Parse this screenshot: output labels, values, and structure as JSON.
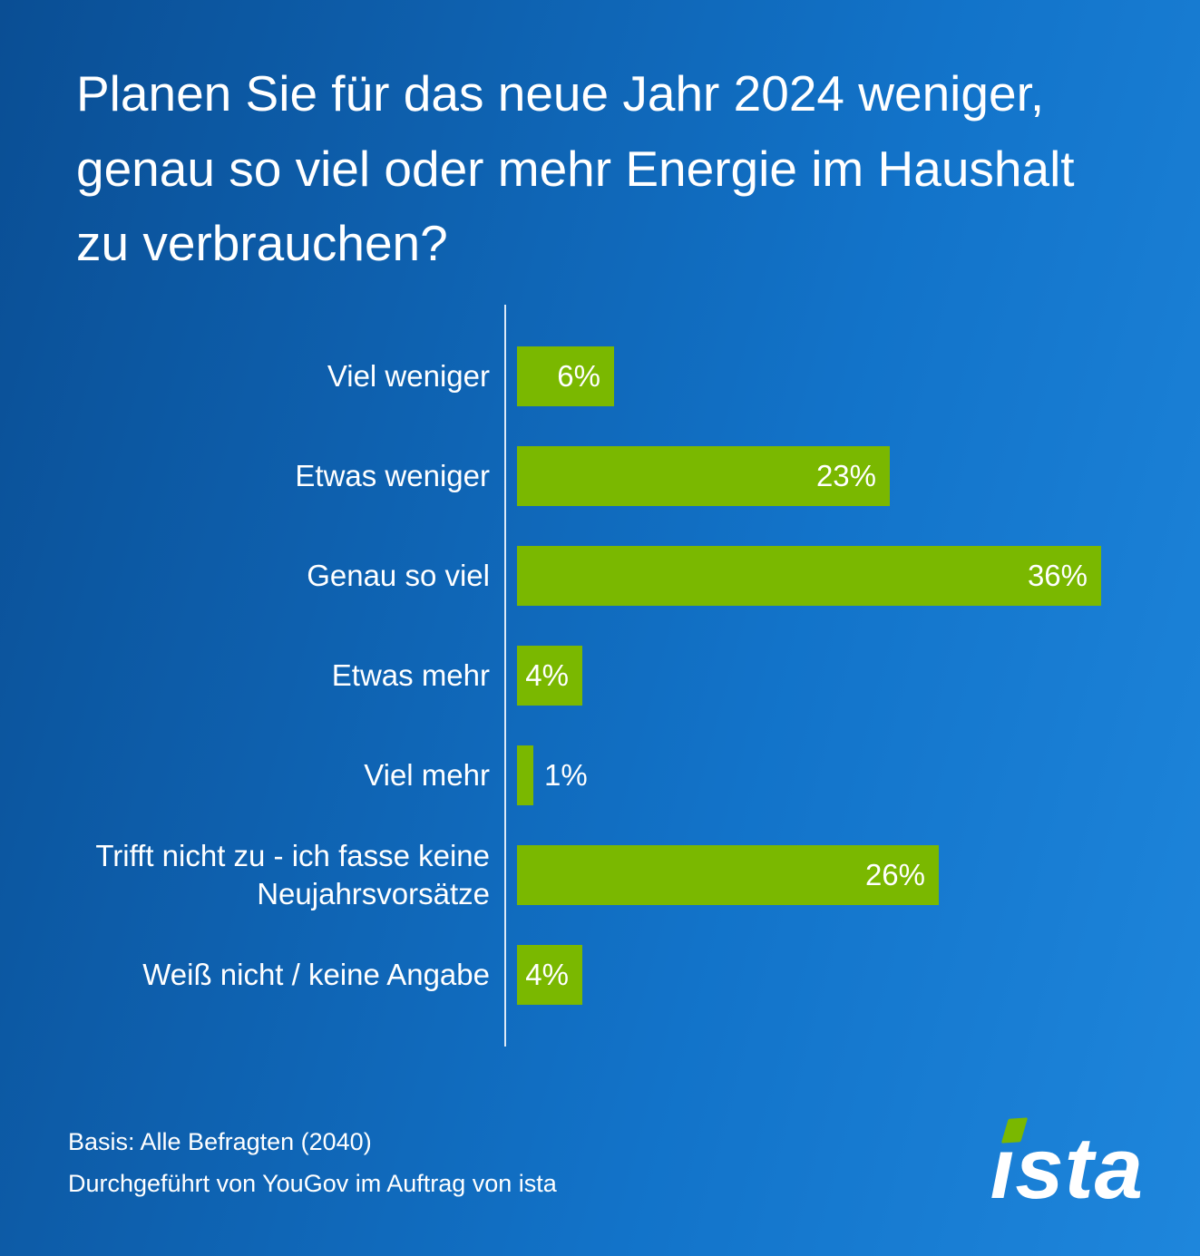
{
  "title": "Planen Sie für das neue Jahr 2024 weniger, genau so viel oder mehr Energie im Haushalt zu verbrauchen?",
  "chart_data": {
    "type": "bar",
    "orientation": "horizontal",
    "title": "Planen Sie für das neue Jahr 2024 weniger, genau so viel oder mehr Energie im Haushalt zu verbrauchen?",
    "categories": [
      "Viel weniger",
      "Etwas weniger",
      "Genau so viel",
      "Etwas mehr",
      "Viel mehr",
      "Trifft nicht zu - ich fasse keine Neujahrsvorsätze",
      "Weiß nicht / keine Angabe"
    ],
    "values": [
      6,
      23,
      36,
      4,
      1,
      26,
      4
    ],
    "value_labels": [
      "6%",
      "23%",
      "36%",
      "4%",
      "1%",
      "26%",
      "4%"
    ],
    "unit": "%",
    "xlim": [
      0,
      36
    ],
    "grid": false,
    "legend": false,
    "bar_color": "#7ab800",
    "value_label_color": "#ffffff",
    "background_top": "#0a4e94",
    "background_bottom": "#1e86dc"
  },
  "footer": {
    "basis": "Basis: Alle Befragten (2040)",
    "conducted": "Durchgeführt von YouGov im Auftrag von ista"
  },
  "logo": {
    "text": "ista",
    "accent_color": "#7ab800"
  }
}
